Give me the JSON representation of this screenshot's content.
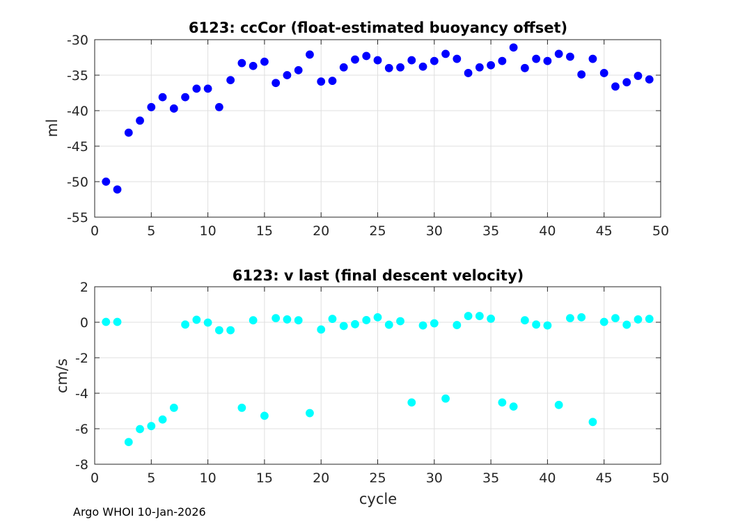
{
  "footer": "Argo WHOI 10-Jan-2026",
  "chart_data": [
    {
      "type": "scatter",
      "title": "6123: ccCor (float-estimated buoyancy offset)",
      "xlabel": "",
      "ylabel": "ml",
      "xlim": [
        0,
        50
      ],
      "ylim": [
        -55,
        -30
      ],
      "xticks": [
        0,
        5,
        10,
        15,
        20,
        25,
        30,
        35,
        40,
        45,
        50
      ],
      "yticks": [
        -55,
        -50,
        -45,
        -40,
        -35,
        -30
      ],
      "grid": true,
      "marker_color": "#0000ff",
      "series": [
        {
          "x": [
            1,
            2,
            3,
            4,
            5,
            6,
            7,
            8,
            9,
            10,
            11,
            12,
            13,
            14,
            15,
            16,
            17,
            18,
            19,
            20,
            21,
            22,
            23,
            24,
            25,
            26,
            27,
            28,
            29,
            30,
            31,
            32,
            33,
            34,
            35,
            36,
            37,
            38,
            39,
            40,
            41,
            42,
            43,
            44,
            45,
            46,
            47,
            48,
            49
          ],
          "y": [
            -50.0,
            -51.1,
            -43.1,
            -41.4,
            -39.5,
            -38.1,
            -39.7,
            -38.1,
            -36.9,
            -36.9,
            -39.5,
            -35.7,
            -33.3,
            -33.7,
            -33.1,
            -36.1,
            -35.0,
            -34.3,
            -32.1,
            -35.9,
            -35.8,
            -33.9,
            -32.8,
            -32.3,
            -32.9,
            -34.0,
            -33.9,
            -32.9,
            -33.8,
            -33.0,
            -32.0,
            -32.7,
            -34.7,
            -33.9,
            -33.6,
            -33.0,
            -31.1,
            -34.0,
            -32.7,
            -33.0,
            -32.0,
            -32.4,
            -34.9,
            -32.7,
            -34.7,
            -36.6,
            -36.0,
            -35.1,
            -35.6
          ]
        }
      ]
    },
    {
      "type": "scatter",
      "title": "6123: v last (final descent velocity)",
      "xlabel": "cycle",
      "ylabel": "cm/s",
      "xlim": [
        0,
        50
      ],
      "ylim": [
        -8,
        2
      ],
      "xticks": [
        0,
        5,
        10,
        15,
        20,
        25,
        30,
        35,
        40,
        45,
        50
      ],
      "yticks": [
        -8,
        -6,
        -4,
        -2,
        0,
        2
      ],
      "grid": true,
      "marker_color": "#00ffff",
      "series": [
        {
          "x": [
            1,
            2,
            3,
            4,
            5,
            6,
            7,
            8,
            9,
            10,
            11,
            12,
            13,
            14,
            15,
            16,
            17,
            18,
            19,
            20,
            21,
            22,
            23,
            24,
            25,
            26,
            27,
            28,
            29,
            30,
            31,
            32,
            33,
            34,
            35,
            36,
            37,
            38,
            39,
            40,
            41,
            42,
            43,
            44,
            45,
            46,
            47,
            48,
            49
          ],
          "y": [
            0.02,
            0.02,
            -6.75,
            -6.02,
            -5.85,
            -5.48,
            -4.82,
            -0.13,
            0.14,
            -0.02,
            -0.45,
            -0.45,
            -4.82,
            0.11,
            -5.27,
            0.23,
            0.16,
            0.11,
            -5.12,
            -0.41,
            0.19,
            -0.21,
            -0.11,
            0.12,
            0.28,
            -0.14,
            0.06,
            -4.52,
            -0.18,
            -0.06,
            -4.3,
            -0.16,
            0.35,
            0.35,
            0.2,
            -4.52,
            -4.75,
            0.11,
            -0.13,
            -0.18,
            -4.66,
            0.23,
            0.28,
            -5.62,
            0.02,
            0.23,
            -0.14,
            0.16,
            0.19
          ]
        }
      ]
    }
  ]
}
